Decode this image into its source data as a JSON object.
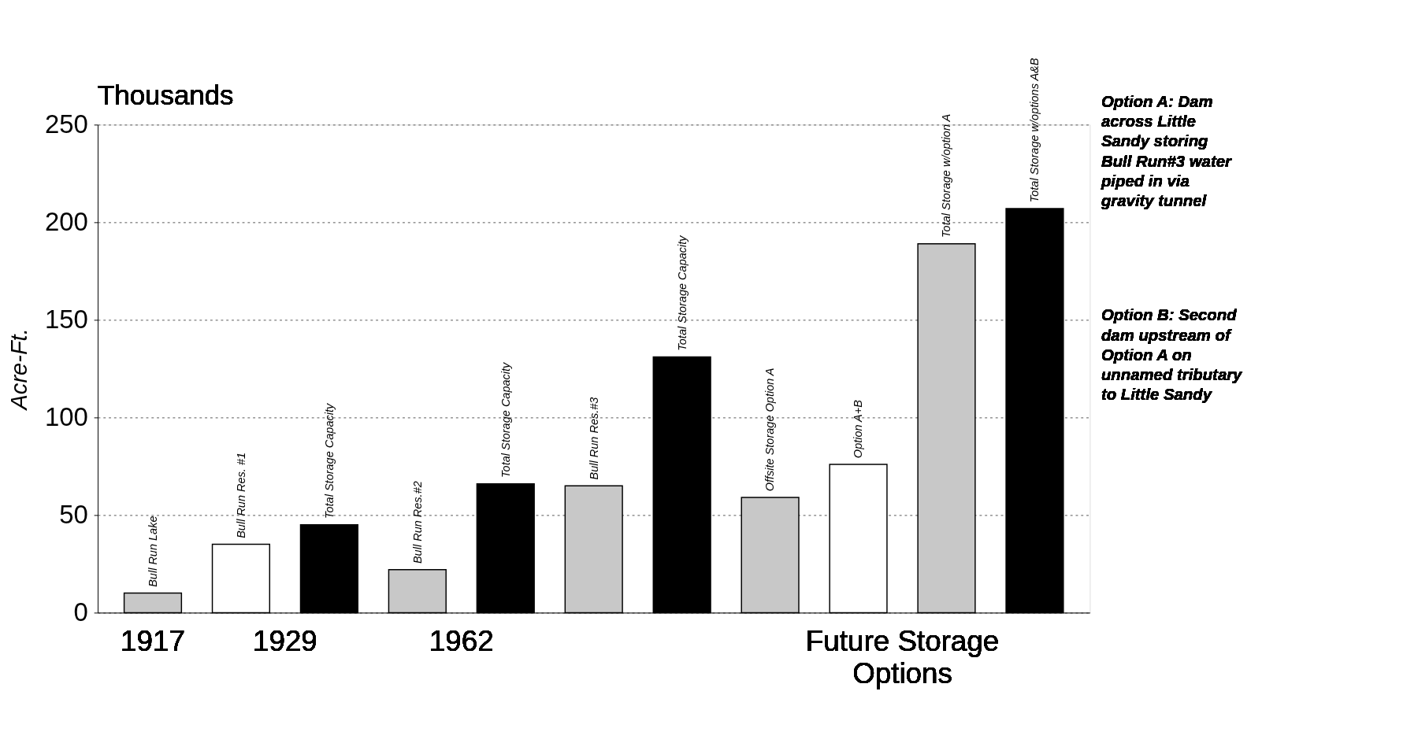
{
  "chart_data": {
    "type": "bar",
    "ylabel": "Acre-Ft.",
    "categories": [
      "Bull Run Lake",
      "Bull Run Res. #1",
      "Total Storage Capacity",
      "Bull Run Res.#2",
      "Total Storage Capacity",
      "Bull Run Res.#3",
      "Total Storage Capacity",
      "Offsite Storage Option A",
      "Option A+B",
      "Total Storage w/option A",
      "Total Storage w/options A&B"
    ],
    "values": [
      10,
      35,
      45,
      22,
      66,
      65,
      131,
      59,
      76,
      189,
      207
    ],
    "colors": [
      "#c8c8c8",
      "#ffffff",
      "#000000",
      "#c8c8c8",
      "#000000",
      "#c8c8c8",
      "#000000",
      "#c8c8c8",
      "#ffffff",
      "#c8c8c8",
      "#000000"
    ],
    "ylim": [
      0,
      250
    ],
    "yticks": [
      0,
      50,
      100,
      150,
      200,
      250
    ],
    "grid": "y",
    "annotations": [
      "Thousands",
      "1917",
      "1929",
      "1962",
      "Future Storage Options",
      "Option A: Dam across Little Sandy storing Bull Run#3 water piped in via gravity tunnel",
      "Option B: Second dam upstream of Option A on unnamed tributary to Little Sandy"
    ]
  }
}
